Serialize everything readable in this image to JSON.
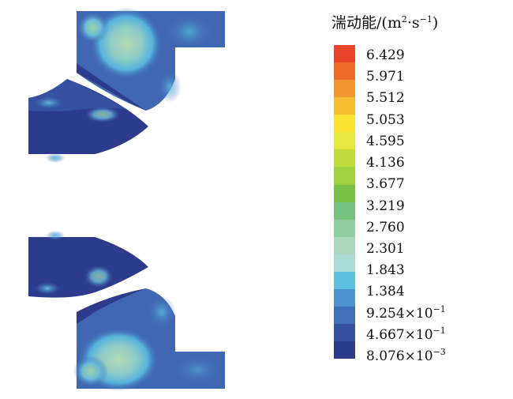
{
  "legend": {
    "title_main": "湍动能/(m",
    "title_sup1": "2",
    "title_mid": "·s",
    "title_sup2": "−1",
    "title_end": ")",
    "colors": [
      "#e9452a",
      "#ec6a2a",
      "#f1952e",
      "#f7bd30",
      "#fde135",
      "#e6e83e",
      "#c2dc3e",
      "#9ed040",
      "#79c249",
      "#74c47f",
      "#90cfa0",
      "#acd9be",
      "#aadbd6",
      "#5ec0e2",
      "#4b92d0",
      "#3f6fb8",
      "#3551a0",
      "#2d3b8c"
    ],
    "labels": [
      {
        "mant": "6.429",
        "exp": ""
      },
      {
        "mant": "5.971",
        "exp": ""
      },
      {
        "mant": "5.512",
        "exp": ""
      },
      {
        "mant": "5.053",
        "exp": ""
      },
      {
        "mant": "4.595",
        "exp": ""
      },
      {
        "mant": "4.136",
        "exp": ""
      },
      {
        "mant": "3.677",
        "exp": ""
      },
      {
        "mant": "3.219",
        "exp": ""
      },
      {
        "mant": "2.760",
        "exp": ""
      },
      {
        "mant": "2.301",
        "exp": ""
      },
      {
        "mant": "1.843",
        "exp": ""
      },
      {
        "mant": "1.384",
        "exp": ""
      },
      {
        "mant": "9.254×10",
        "exp": "−1"
      },
      {
        "mant": "4.667×10",
        "exp": "−1"
      },
      {
        "mant": "8.076×10",
        "exp": "−3"
      }
    ]
  }
}
